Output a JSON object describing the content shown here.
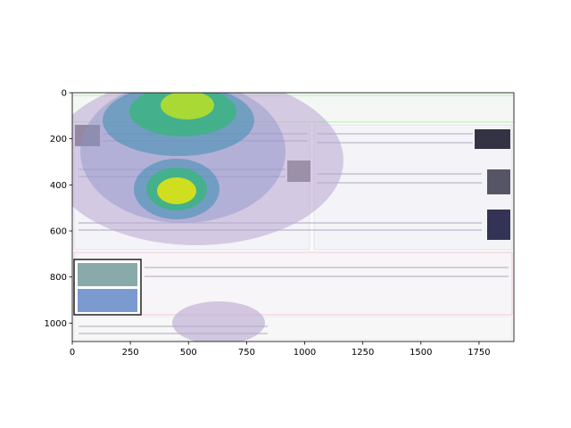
{
  "chart_data": {
    "type": "image",
    "xlim": [
      0,
      1900
    ],
    "ylim": [
      1080,
      0
    ],
    "xticks": [
      0,
      250,
      500,
      750,
      1000,
      1250,
      1500,
      1750
    ],
    "yticks": [
      0,
      200,
      400,
      600,
      800,
      1000
    ]
  }
}
